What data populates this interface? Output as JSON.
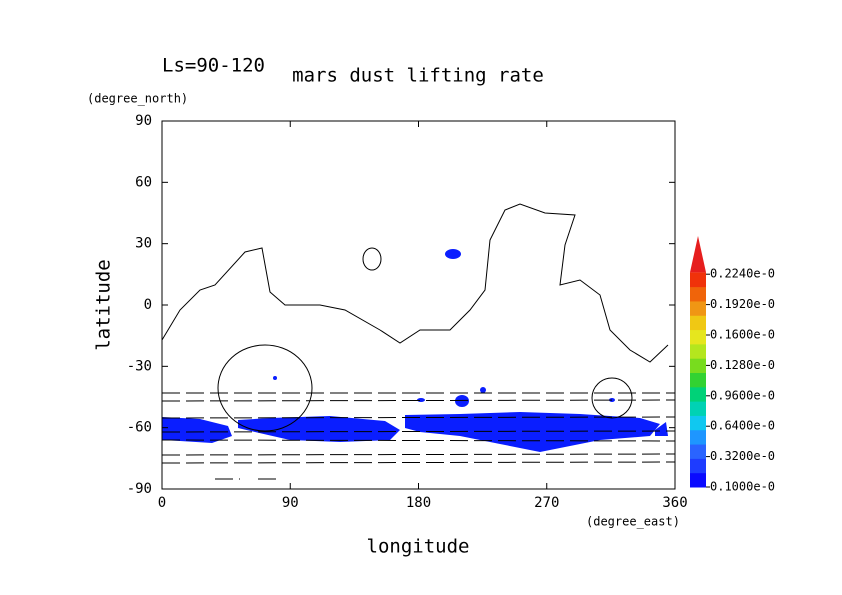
{
  "chart_data": {
    "type": "contour",
    "title": "mars dust lifting rate",
    "subtitle": "Ls=90-120",
    "xlabel": "longitude",
    "ylabel": "latitude",
    "xunit": "(degree_east)",
    "yunit": "(degree_north)",
    "xlim": [
      0,
      360
    ],
    "ylim": [
      -90,
      90
    ],
    "xticks": [
      0,
      90,
      180,
      270,
      360
    ],
    "yticks": [
      90,
      60,
      30,
      0,
      -30,
      -60,
      -90
    ],
    "fill_color": "#0a1eff",
    "colorbar_labels": [
      "0.1000e-0",
      "0.3200e-0",
      "0.6400e-0",
      "0.9600e-0",
      "0.1280e-0",
      "0.1600e-0",
      "0.1920e-0",
      "0.2240e-0"
    ],
    "colorbar_colors": [
      "#0a0aff",
      "#1e3cff",
      "#2a64ff",
      "#1e96ff",
      "#10c8f0",
      "#00d2b4",
      "#00d278",
      "#32d232",
      "#78dc1e",
      "#b4e61e",
      "#e6e61e",
      "#f0c814",
      "#f09614",
      "#f0640a",
      "#f0320a",
      "#e61e1e"
    ]
  }
}
